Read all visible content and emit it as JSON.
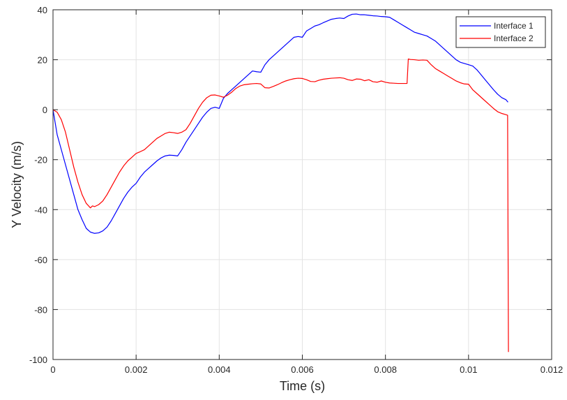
{
  "chart_data": {
    "type": "line",
    "title": "",
    "xlabel": "Time (s)",
    "ylabel": "Y Velocity (m/s)",
    "xlim": [
      0,
      0.012
    ],
    "ylim": [
      -100,
      40
    ],
    "grid": true,
    "legend_position": "top-right",
    "x_ticks": [
      "0",
      "0.002",
      "0.004",
      "0.006",
      "0.008",
      "0.01",
      "0.012"
    ],
    "y_ticks": [
      "-100",
      "-80",
      "-60",
      "-40",
      "-20",
      "0",
      "20",
      "40"
    ],
    "series": [
      {
        "name": "Interface 1",
        "color": "#0000ff",
        "points": [
          [
            0,
            0
          ],
          [
            0.0001,
            -10
          ],
          [
            0.0002,
            -16
          ],
          [
            0.0003,
            -22
          ],
          [
            0.0004,
            -28
          ],
          [
            0.0005,
            -34
          ],
          [
            0.0006,
            -40
          ],
          [
            0.0007,
            -44
          ],
          [
            0.0008,
            -47.5
          ],
          [
            0.0009,
            -49
          ],
          [
            0.001,
            -49.5
          ],
          [
            0.0011,
            -49.3
          ],
          [
            0.0012,
            -48.5
          ],
          [
            0.0013,
            -47
          ],
          [
            0.0014,
            -44.5
          ],
          [
            0.0015,
            -41.5
          ],
          [
            0.0016,
            -38.5
          ],
          [
            0.0017,
            -35.5
          ],
          [
            0.0018,
            -33
          ],
          [
            0.0019,
            -31
          ],
          [
            0.002,
            -29.5
          ],
          [
            0.0021,
            -27
          ],
          [
            0.0022,
            -25
          ],
          [
            0.0023,
            -23.5
          ],
          [
            0.0024,
            -22
          ],
          [
            0.0025,
            -20.5
          ],
          [
            0.0026,
            -19.3
          ],
          [
            0.0027,
            -18.5
          ],
          [
            0.0028,
            -18.2
          ],
          [
            0.0029,
            -18.3
          ],
          [
            0.003,
            -18.5
          ],
          [
            0.0031,
            -16
          ],
          [
            0.0032,
            -13
          ],
          [
            0.0033,
            -10.5
          ],
          [
            0.0034,
            -8
          ],
          [
            0.0035,
            -5.5
          ],
          [
            0.0036,
            -3
          ],
          [
            0.0037,
            -1
          ],
          [
            0.0038,
            0.5
          ],
          [
            0.0039,
            1
          ],
          [
            0.004,
            0.5
          ],
          [
            0.0041,
            4.5
          ],
          [
            0.0042,
            6.5
          ],
          [
            0.0043,
            8
          ],
          [
            0.0044,
            9.5
          ],
          [
            0.0045,
            11
          ],
          [
            0.0046,
            12.5
          ],
          [
            0.0047,
            14
          ],
          [
            0.0048,
            15.5
          ],
          [
            0.0049,
            15.2
          ],
          [
            0.005,
            15
          ],
          [
            0.0051,
            18
          ],
          [
            0.0052,
            20
          ],
          [
            0.0053,
            21.5
          ],
          [
            0.0054,
            23
          ],
          [
            0.0055,
            24.5
          ],
          [
            0.0056,
            26
          ],
          [
            0.0057,
            27.5
          ],
          [
            0.0058,
            29
          ],
          [
            0.0059,
            29.3
          ],
          [
            0.006,
            29
          ],
          [
            0.0061,
            31.5
          ],
          [
            0.0062,
            32.5
          ],
          [
            0.0063,
            33.5
          ],
          [
            0.0064,
            34
          ],
          [
            0.0065,
            34.8
          ],
          [
            0.0066,
            35.5
          ],
          [
            0.0067,
            36.2
          ],
          [
            0.0068,
            36.5
          ],
          [
            0.0069,
            36.7
          ],
          [
            0.007,
            36.5
          ],
          [
            0.0071,
            37.5
          ],
          [
            0.0072,
            38.2
          ],
          [
            0.0073,
            38.3
          ],
          [
            0.0074,
            38
          ],
          [
            0.0075,
            38
          ],
          [
            0.0076,
            37.8
          ],
          [
            0.0077,
            37.6
          ],
          [
            0.0078,
            37.5
          ],
          [
            0.0079,
            37.3
          ],
          [
            0.008,
            37.2
          ],
          [
            0.0081,
            37
          ],
          [
            0.0082,
            36
          ],
          [
            0.0083,
            35
          ],
          [
            0.0084,
            34
          ],
          [
            0.0085,
            33
          ],
          [
            0.0086,
            32
          ],
          [
            0.0087,
            31
          ],
          [
            0.0088,
            30.5
          ],
          [
            0.0089,
            30
          ],
          [
            0.009,
            29.5
          ],
          [
            0.0091,
            28.5
          ],
          [
            0.0092,
            27.5
          ],
          [
            0.0093,
            26
          ],
          [
            0.0094,
            24.5
          ],
          [
            0.0095,
            23
          ],
          [
            0.0096,
            21.5
          ],
          [
            0.0097,
            20
          ],
          [
            0.0098,
            19
          ],
          [
            0.0099,
            18.5
          ],
          [
            0.01,
            18
          ],
          [
            0.0101,
            17.5
          ],
          [
            0.0102,
            16
          ],
          [
            0.0103,
            14
          ],
          [
            0.0104,
            12
          ],
          [
            0.0105,
            10
          ],
          [
            0.0106,
            8
          ],
          [
            0.0107,
            6.2
          ],
          [
            0.0108,
            4.8
          ],
          [
            0.0109,
            4
          ],
          [
            0.01095,
            3
          ]
        ]
      },
      {
        "name": "Interface 2",
        "color": "#ff0000",
        "points": [
          [
            0,
            0
          ],
          [
            0.0001,
            -1
          ],
          [
            0.0002,
            -4
          ],
          [
            0.0003,
            -9
          ],
          [
            0.0004,
            -16
          ],
          [
            0.0005,
            -23
          ],
          [
            0.0006,
            -29
          ],
          [
            0.0007,
            -34
          ],
          [
            0.0008,
            -37.5
          ],
          [
            0.0009,
            -39.3
          ],
          [
            0.00095,
            -38.5
          ],
          [
            0.001,
            -38.8
          ],
          [
            0.0011,
            -38
          ],
          [
            0.0012,
            -36.5
          ],
          [
            0.0013,
            -34
          ],
          [
            0.0014,
            -31
          ],
          [
            0.0015,
            -28
          ],
          [
            0.0016,
            -25
          ],
          [
            0.0017,
            -22.5
          ],
          [
            0.0018,
            -20.5
          ],
          [
            0.0019,
            -19
          ],
          [
            0.002,
            -17.5
          ],
          [
            0.0021,
            -16.8
          ],
          [
            0.0022,
            -16
          ],
          [
            0.0023,
            -14.5
          ],
          [
            0.0024,
            -13
          ],
          [
            0.0025,
            -11.5
          ],
          [
            0.0026,
            -10.5
          ],
          [
            0.0027,
            -9.5
          ],
          [
            0.0028,
            -9
          ],
          [
            0.0029,
            -9.2
          ],
          [
            0.003,
            -9.5
          ],
          [
            0.0031,
            -9
          ],
          [
            0.0032,
            -8
          ],
          [
            0.0033,
            -5.5
          ],
          [
            0.0034,
            -2.5
          ],
          [
            0.0035,
            0.5
          ],
          [
            0.0036,
            3
          ],
          [
            0.0037,
            4.8
          ],
          [
            0.0038,
            5.8
          ],
          [
            0.0039,
            5.9
          ],
          [
            0.004,
            5.5
          ],
          [
            0.0041,
            5
          ],
          [
            0.0042,
            5.8
          ],
          [
            0.0043,
            7
          ],
          [
            0.0044,
            8.5
          ],
          [
            0.0045,
            9.5
          ],
          [
            0.0046,
            10
          ],
          [
            0.0047,
            10.2
          ],
          [
            0.0048,
            10.4
          ],
          [
            0.0049,
            10.5
          ],
          [
            0.005,
            10.3
          ],
          [
            0.0051,
            8.8
          ],
          [
            0.0052,
            8.7
          ],
          [
            0.0053,
            9.3
          ],
          [
            0.0054,
            10
          ],
          [
            0.0055,
            10.8
          ],
          [
            0.0056,
            11.5
          ],
          [
            0.0057,
            12
          ],
          [
            0.0058,
            12.4
          ],
          [
            0.0059,
            12.6
          ],
          [
            0.006,
            12.5
          ],
          [
            0.0061,
            12
          ],
          [
            0.0062,
            11.3
          ],
          [
            0.0063,
            11.2
          ],
          [
            0.0064,
            11.8
          ],
          [
            0.0065,
            12.2
          ],
          [
            0.0066,
            12.4
          ],
          [
            0.0067,
            12.6
          ],
          [
            0.0068,
            12.7
          ],
          [
            0.0069,
            12.8
          ],
          [
            0.007,
            12.6
          ],
          [
            0.0071,
            12
          ],
          [
            0.0072,
            11.7
          ],
          [
            0.0073,
            12.3
          ],
          [
            0.0074,
            12.2
          ],
          [
            0.0075,
            11.6
          ],
          [
            0.0076,
            12
          ],
          [
            0.0077,
            11.2
          ],
          [
            0.0078,
            11
          ],
          [
            0.0079,
            11.5
          ],
          [
            0.008,
            11
          ],
          [
            0.0081,
            10.7
          ],
          [
            0.0082,
            10.6
          ],
          [
            0.0083,
            10.5
          ],
          [
            0.0084,
            10.5
          ],
          [
            0.00852,
            10.5
          ],
          [
            0.00855,
            20.3
          ],
          [
            0.0086,
            20.1
          ],
          [
            0.0087,
            20
          ],
          [
            0.0088,
            19.8
          ],
          [
            0.0089,
            19.9
          ],
          [
            0.009,
            19.8
          ],
          [
            0.0091,
            18
          ],
          [
            0.0092,
            16.5
          ],
          [
            0.0093,
            15.5
          ],
          [
            0.0094,
            14.5
          ],
          [
            0.0095,
            13.5
          ],
          [
            0.0096,
            12.5
          ],
          [
            0.0097,
            11.5
          ],
          [
            0.0098,
            10.8
          ],
          [
            0.0099,
            10.3
          ],
          [
            0.01,
            10.2
          ],
          [
            0.0101,
            8
          ],
          [
            0.0102,
            6.5
          ],
          [
            0.0103,
            5
          ],
          [
            0.0104,
            3.5
          ],
          [
            0.0105,
            2
          ],
          [
            0.0106,
            0.5
          ],
          [
            0.0107,
            -0.8
          ],
          [
            0.0108,
            -1.5
          ],
          [
            0.0109,
            -2
          ],
          [
            0.01094,
            -2.2
          ],
          [
            0.01096,
            -97
          ]
        ]
      }
    ]
  }
}
